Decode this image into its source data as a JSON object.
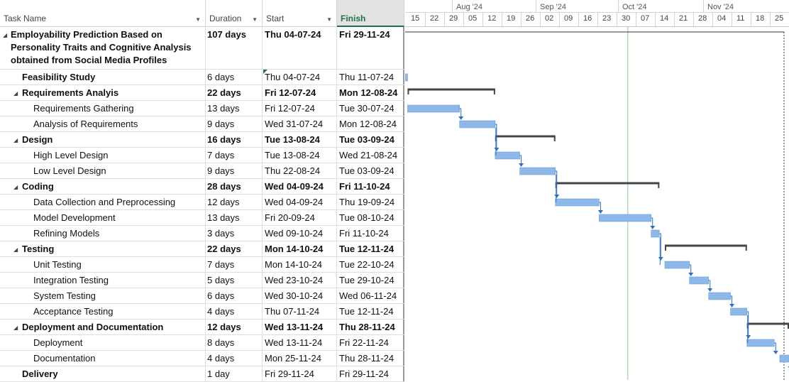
{
  "columns": {
    "task_name": "Task Name",
    "duration": "Duration",
    "start": "Start",
    "finish": "Finish"
  },
  "tasks": [
    {
      "name_lines": [
        "Employability Prediction Based on",
        "Personality Traits and Cognitive Analysis",
        "obtained from Social Media Profiles"
      ],
      "duration": "107 days",
      "start": "Thu 04-07-24",
      "finish": "Fri 29-11-24",
      "level": 0,
      "summary": true,
      "collapse": "◢"
    },
    {
      "name": "Feasibility Study",
      "duration": "6 days",
      "start": "Thu 04-07-24",
      "finish": "Thu 11-07-24",
      "level": 1,
      "summary": false,
      "bold_name": true
    },
    {
      "name": "Requirements Analyis",
      "duration": "22 days",
      "start": "Fri 12-07-24",
      "finish": "Mon 12-08-24",
      "level": 1,
      "summary": true,
      "collapse": "◢"
    },
    {
      "name": "Requirements Gathering",
      "duration": "13 days",
      "start": "Fri 12-07-24",
      "finish": "Tue 30-07-24",
      "level": 2,
      "summary": false
    },
    {
      "name": "Analysis of Requirements",
      "duration": "9 days",
      "start": "Wed 31-07-24",
      "finish": "Mon 12-08-24",
      "level": 2,
      "summary": false
    },
    {
      "name": "Design",
      "duration": "16 days",
      "start": "Tue 13-08-24",
      "finish": "Tue 03-09-24",
      "level": 1,
      "summary": true,
      "collapse": "◢"
    },
    {
      "name": "High Level Design",
      "duration": "7 days",
      "start": "Tue 13-08-24",
      "finish": "Wed 21-08-24",
      "level": 2,
      "summary": false
    },
    {
      "name": "Low Level Design",
      "duration": "9 days",
      "start": "Thu 22-08-24",
      "finish": "Tue 03-09-24",
      "level": 2,
      "summary": false
    },
    {
      "name": "Coding",
      "duration": "28 days",
      "start": "Wed 04-09-24",
      "finish": "Fri 11-10-24",
      "level": 1,
      "summary": true,
      "collapse": "◢"
    },
    {
      "name": "Data Collection and Preprocessing",
      "duration": "12 days",
      "start": "Wed 04-09-24",
      "finish": "Thu 19-09-24",
      "level": 2,
      "summary": false
    },
    {
      "name": "Model Development",
      "duration": "13 days",
      "start": "Fri 20-09-24",
      "finish": "Tue 08-10-24",
      "level": 2,
      "summary": false
    },
    {
      "name": "Refining Models",
      "duration": "3 days",
      "start": "Wed 09-10-24",
      "finish": "Fri 11-10-24",
      "level": 2,
      "summary": false
    },
    {
      "name": "Testing",
      "duration": "22 days",
      "start": "Mon 14-10-24",
      "finish": "Tue 12-11-24",
      "level": 1,
      "summary": true,
      "collapse": "◢"
    },
    {
      "name": "Unit Testing",
      "duration": "7 days",
      "start": "Mon 14-10-24",
      "finish": "Tue 22-10-24",
      "level": 2,
      "summary": false
    },
    {
      "name": "Integration Testing",
      "duration": "5 days",
      "start": "Wed 23-10-24",
      "finish": "Tue 29-10-24",
      "level": 2,
      "summary": false
    },
    {
      "name": "System Testing",
      "duration": "6 days",
      "start": "Wed 30-10-24",
      "finish": "Wed 06-11-24",
      "level": 2,
      "summary": false
    },
    {
      "name": "Acceptance Testing",
      "duration": "4 days",
      "start": "Thu 07-11-24",
      "finish": "Tue 12-11-24",
      "level": 2,
      "summary": false
    },
    {
      "name": "Deployment and Documentation",
      "duration": "12 days",
      "start": "Wed 13-11-24",
      "finish": "Thu 28-11-24",
      "level": 1,
      "summary": true,
      "collapse": "◢"
    },
    {
      "name": "Deployment",
      "duration": "8 days",
      "start": "Wed 13-11-24",
      "finish": "Fri 22-11-24",
      "level": 2,
      "summary": false
    },
    {
      "name": "Documentation",
      "duration": "4 days",
      "start": "Mon 25-11-24",
      "finish": "Thu 28-11-24",
      "level": 2,
      "summary": false
    },
    {
      "name": "Delivery",
      "duration": "1 day",
      "start": "Fri 29-11-24",
      "finish": "Fri 29-11-24",
      "level": 1,
      "summary": false,
      "bold_name": true
    }
  ],
  "timeline": {
    "months": [
      "Aug '24",
      "Sep '24",
      "Oct '24",
      "Nov '24"
    ],
    "weeks": [
      "15",
      "22",
      "29",
      "05",
      "12",
      "19",
      "26",
      "02",
      "09",
      "16",
      "23",
      "30",
      "07",
      "14",
      "21",
      "28",
      "04",
      "11",
      "18",
      "25"
    ]
  },
  "colors": {
    "task_bar": "#8db8e8",
    "task_bar_border": "#6a9fd8",
    "summary_bar": "#444444",
    "link": "#2e6fc2",
    "current_date_line": "#8fc98f",
    "finish_accent": "#217346"
  }
}
